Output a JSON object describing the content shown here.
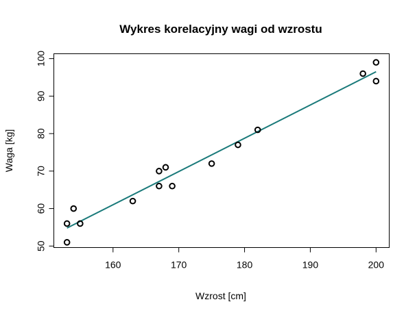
{
  "chart_data": {
    "type": "scatter",
    "title": "Wykres korelacyjny wagi od wzrostu",
    "xlabel": "Wzrost [cm]",
    "ylabel": "Waga [kg]",
    "xlim": [
      151,
      202
    ],
    "ylim": [
      49.6,
      101.3
    ],
    "xticks": [
      160,
      170,
      180,
      190,
      200
    ],
    "yticks": [
      50,
      60,
      70,
      80,
      90,
      100
    ],
    "grid": false,
    "legend": "none",
    "series": [
      {
        "x": [
          153,
          153,
          154,
          155,
          163,
          167,
          167,
          168,
          169,
          175,
          179,
          182,
          198,
          200,
          200
        ],
        "y": [
          51,
          56,
          60,
          56,
          62,
          66,
          70,
          71,
          66,
          72,
          77,
          81,
          96,
          99,
          94
        ],
        "marker": "open-circle",
        "color": "#000000"
      }
    ],
    "trend_line": {
      "x": [
        153,
        200
      ],
      "y": [
        54.8,
        96.5
      ],
      "color": "#1a7a7a"
    }
  }
}
